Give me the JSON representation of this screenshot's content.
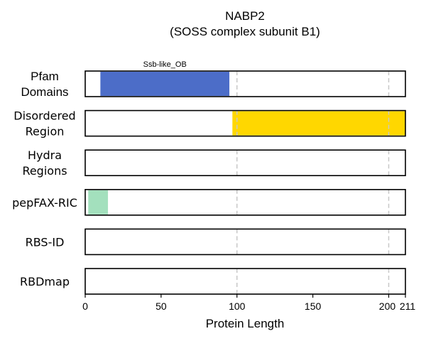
{
  "chart_data": {
    "type": "bar",
    "title": "NABP2",
    "subtitle": "(SOSS complex subunit B1)",
    "xlabel": "Protein Length",
    "xlim": [
      0,
      211
    ],
    "x_ticks": [
      0,
      50,
      100,
      150,
      200,
      211
    ],
    "x_tick_labels": [
      "0",
      "50",
      "100",
      "150",
      "200",
      "211"
    ],
    "gridlines_at": [
      100,
      200
    ],
    "rows": [
      {
        "label_lines": [
          "Pfam",
          "Domains"
        ],
        "segments": [
          {
            "start": 10,
            "end": 95,
            "color": "#4C6DC8",
            "label": "Ssb-like_OB"
          }
        ]
      },
      {
        "label_lines": [
          "Disordered",
          "Region"
        ],
        "segments": [
          {
            "start": 97,
            "end": 211,
            "color": "#FFD700"
          }
        ]
      },
      {
        "label_lines": [
          "Hydra",
          "Regions"
        ],
        "segments": []
      },
      {
        "label_lines": [
          "pepFAX-RIC"
        ],
        "segments": [
          {
            "start": 2,
            "end": 15,
            "color": "#A3E0BD"
          }
        ]
      },
      {
        "label_lines": [
          "RBS-ID"
        ],
        "segments": []
      },
      {
        "label_lines": [
          "RBDmap"
        ],
        "segments": []
      }
    ]
  }
}
